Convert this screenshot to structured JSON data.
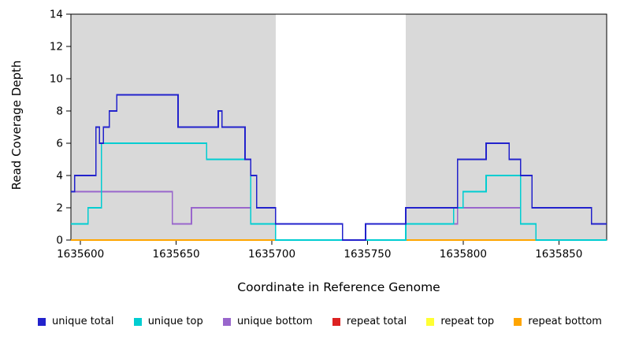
{
  "figure": {
    "xlabel": "Coordinate in Reference Genome",
    "ylabel": "Read Coverage Depth"
  },
  "chart_data": {
    "type": "line",
    "subtype": "step-coverage",
    "title": "",
    "xlabel": "Coordinate in Reference Genome",
    "ylabel": "Read Coverage Depth",
    "xlim": [
      1635595,
      1635875
    ],
    "ylim": [
      0,
      14
    ],
    "xticks": [
      1635600,
      1635650,
      1635700,
      1635750,
      1635800,
      1635850
    ],
    "yticks": [
      0,
      2,
      4,
      6,
      8,
      10,
      12,
      14
    ],
    "grid": false,
    "legend_position": "bottom",
    "band_color": "#d9d9d9",
    "shaded_regions": [
      {
        "x1": 1635595,
        "x2": 1635702
      },
      {
        "x1": 1635770,
        "x2": 1635875
      }
    ],
    "series": [
      {
        "name": "repeat total",
        "color": "#dd2222",
        "points": [
          [
            1635595,
            0
          ],
          [
            1635875,
            0
          ]
        ]
      },
      {
        "name": "repeat top",
        "color": "#ffff33",
        "points": [
          [
            1635595,
            0
          ],
          [
            1635875,
            0
          ]
        ]
      },
      {
        "name": "repeat bottom",
        "color": "#ffa500",
        "points": [
          [
            1635595,
            0
          ],
          [
            1635875,
            0
          ]
        ]
      },
      {
        "name": "unique bottom",
        "color": "#9966cc",
        "points": [
          [
            1635595,
            3
          ],
          [
            1635648,
            1
          ],
          [
            1635658,
            2
          ],
          [
            1635689,
            1
          ],
          [
            1635737,
            0
          ],
          [
            1635749,
            1
          ],
          [
            1635797,
            2
          ],
          [
            1635830,
            1
          ],
          [
            1635838,
            0
          ],
          [
            1635875,
            0
          ]
        ]
      },
      {
        "name": "unique top",
        "color": "#00cdd1",
        "points": [
          [
            1635595,
            1
          ],
          [
            1635604,
            2
          ],
          [
            1635611,
            6
          ],
          [
            1635666,
            5
          ],
          [
            1635689,
            1
          ],
          [
            1635702,
            0
          ],
          [
            1635770,
            1
          ],
          [
            1635795,
            2
          ],
          [
            1635800,
            3
          ],
          [
            1635812,
            4
          ],
          [
            1635830,
            1
          ],
          [
            1635838,
            0
          ],
          [
            1635875,
            0
          ]
        ]
      },
      {
        "name": "unique total",
        "color": "#2222cc",
        "points": [
          [
            1635595,
            3
          ],
          [
            1635597,
            4
          ],
          [
            1635608,
            7
          ],
          [
            1635610,
            6
          ],
          [
            1635612,
            7
          ],
          [
            1635615,
            8
          ],
          [
            1635619,
            9
          ],
          [
            1635651,
            7
          ],
          [
            1635672,
            8
          ],
          [
            1635674,
            7
          ],
          [
            1635686,
            5
          ],
          [
            1635689,
            4
          ],
          [
            1635692,
            2
          ],
          [
            1635702,
            1
          ],
          [
            1635737,
            0
          ],
          [
            1635749,
            1
          ],
          [
            1635770,
            2
          ],
          [
            1635797,
            5
          ],
          [
            1635812,
            6
          ],
          [
            1635824,
            5
          ],
          [
            1635830,
            4
          ],
          [
            1635836,
            2
          ],
          [
            1635867,
            1
          ],
          [
            1635875,
            1
          ]
        ]
      }
    ],
    "legend_order": [
      "unique total",
      "unique top",
      "unique bottom",
      "repeat total",
      "repeat top",
      "repeat bottom"
    ]
  }
}
